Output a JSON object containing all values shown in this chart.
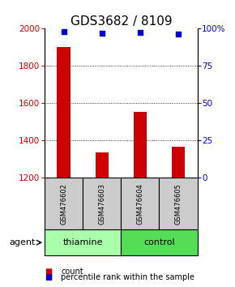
{
  "title": "GDS3682 / 8109",
  "samples": [
    "GSM476602",
    "GSM476603",
    "GSM476604",
    "GSM476605"
  ],
  "counts": [
    1900,
    1335,
    1555,
    1368
  ],
  "percentiles": [
    97.8,
    96.8,
    97.3,
    96.5
  ],
  "ylim_left": [
    1200,
    2000
  ],
  "ylim_right": [
    0,
    100
  ],
  "yticks_left": [
    1200,
    1400,
    1600,
    1800,
    2000
  ],
  "yticks_right": [
    0,
    25,
    50,
    75,
    100
  ],
  "ytick_labels_right": [
    "0",
    "25",
    "50",
    "75",
    "100%"
  ],
  "bar_color": "#cc0000",
  "dot_color": "#0000cc",
  "groups": [
    {
      "label": "thiamine",
      "samples": [
        0,
        1
      ],
      "color": "#aaffaa"
    },
    {
      "label": "control",
      "samples": [
        2,
        3
      ],
      "color": "#55dd55"
    }
  ],
  "sample_box_color": "#cccccc",
  "agent_label": "agent",
  "legend_count_label": "count",
  "legend_pct_label": "percentile rank within the sample",
  "title_fontsize": 11,
  "axis_color_left": "#cc0000",
  "axis_color_right": "#0000cc",
  "bar_width": 0.35
}
